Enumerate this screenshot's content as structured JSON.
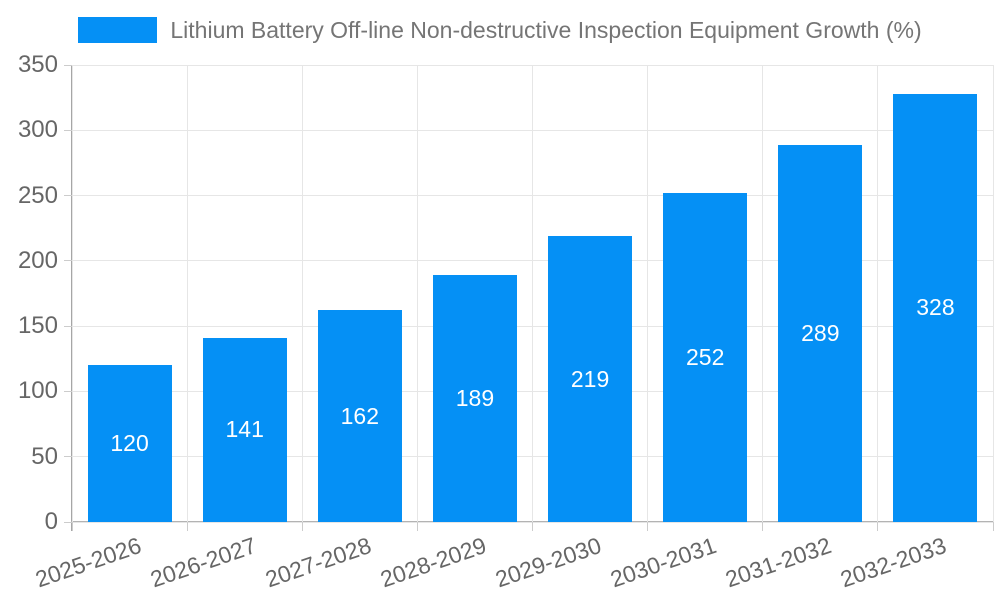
{
  "legend": {
    "label": "Lithium Battery Off-line Non-destructive Inspection Equipment Growth (%)"
  },
  "chart_data": {
    "type": "bar",
    "title": "Lithium Battery Off-line Non-destructive Inspection Equipment Growth (%)",
    "categories": [
      "2025-2026",
      "2026-2027",
      "2027-2028",
      "2028-2029",
      "2029-2030",
      "2030-2031",
      "2031-2032",
      "2032-2033"
    ],
    "values": [
      120,
      141,
      162,
      189,
      219,
      252,
      289,
      328
    ],
    "xlabel": "",
    "ylabel": "",
    "ylim": [
      0,
      350
    ],
    "ytick_step": 50,
    "ytick_labels": [
      "0",
      "50",
      "100",
      "150",
      "200",
      "250",
      "300",
      "350"
    ],
    "grid": true,
    "legend_position": "top",
    "bar_color": "#0590f5",
    "value_label_color": "#ffffff",
    "axis_text_color": "#666666",
    "legend_text_color": "#757575",
    "grid_color": "#e6e6e6",
    "axis_line_color": "#a6a6a6"
  }
}
